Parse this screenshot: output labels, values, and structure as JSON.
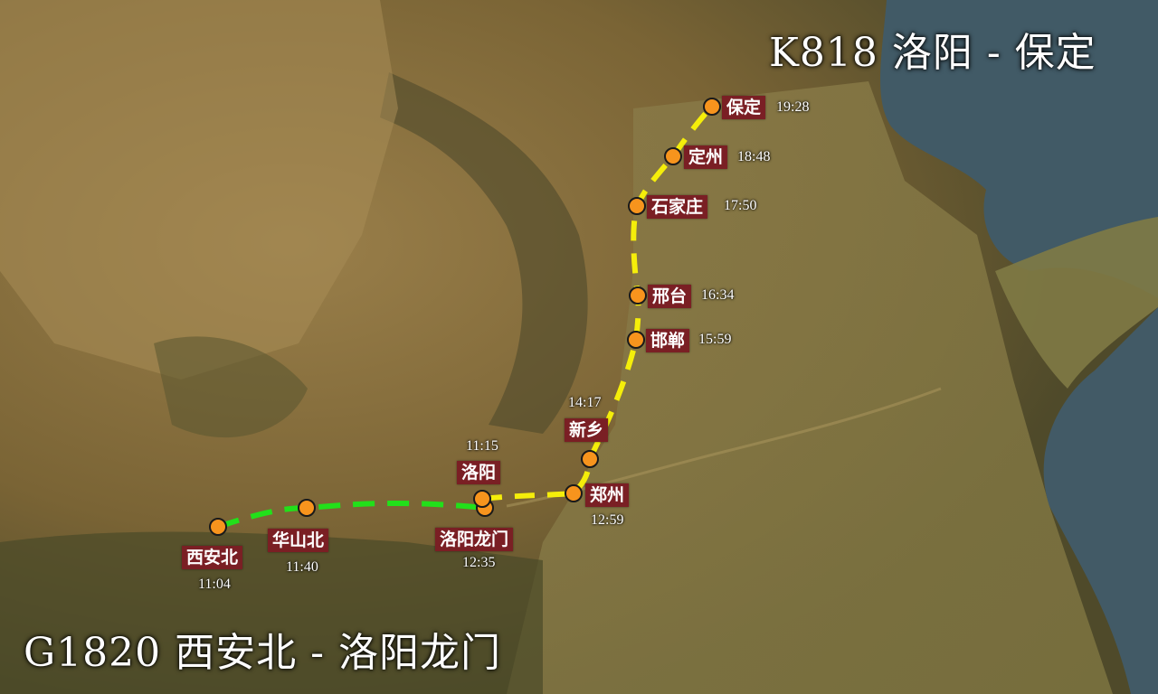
{
  "titles": {
    "k818": "K818 洛阳 - 保定",
    "g1820": "G1820 西安北 - 洛阳龙门"
  },
  "colors": {
    "g1820_line": "#22e01a",
    "k818_line": "#f5ee0a",
    "station_dot": "#f7941d",
    "label_bg": "#7a1f24"
  },
  "routes": {
    "g1820": {
      "line_style": "dashed",
      "stations": [
        {
          "name": "西安北",
          "time": "11:04"
        },
        {
          "name": "华山北",
          "time": "11:40"
        },
        {
          "name": "洛阳龙门",
          "time": "12:35"
        }
      ]
    },
    "k818": {
      "line_style": "dashed",
      "stations": [
        {
          "name": "洛阳",
          "time": "11:15"
        },
        {
          "name": "郑州",
          "time": "12:59"
        },
        {
          "name": "新乡",
          "time": "14:17"
        },
        {
          "name": "邯郸",
          "time": "15:59"
        },
        {
          "name": "邢台",
          "time": "16:34"
        },
        {
          "name": "石家庄",
          "time": "17:50"
        },
        {
          "name": "定州",
          "time": "18:48"
        },
        {
          "name": "保定",
          "time": "19:28"
        }
      ]
    }
  }
}
